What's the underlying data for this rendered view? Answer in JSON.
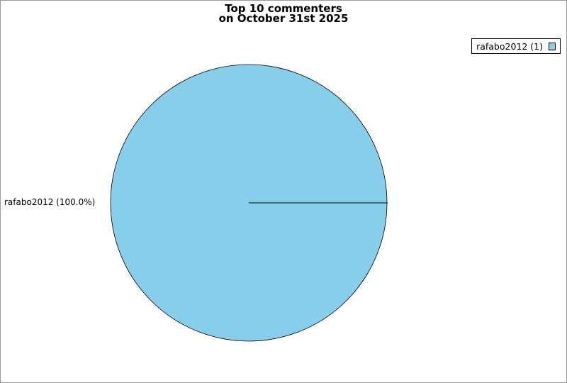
{
  "chart_data": {
    "type": "pie",
    "title": "Top 10 commenters",
    "subtitle": "on October 31st 2025",
    "slices": [
      {
        "label": "rafabo2012",
        "value": 1,
        "percent_label": "rafabo2012 (100.0%)",
        "legend_label": "rafabo2012 (1)",
        "color": "#87ceeb"
      }
    ],
    "legend_placement": "top-right"
  }
}
